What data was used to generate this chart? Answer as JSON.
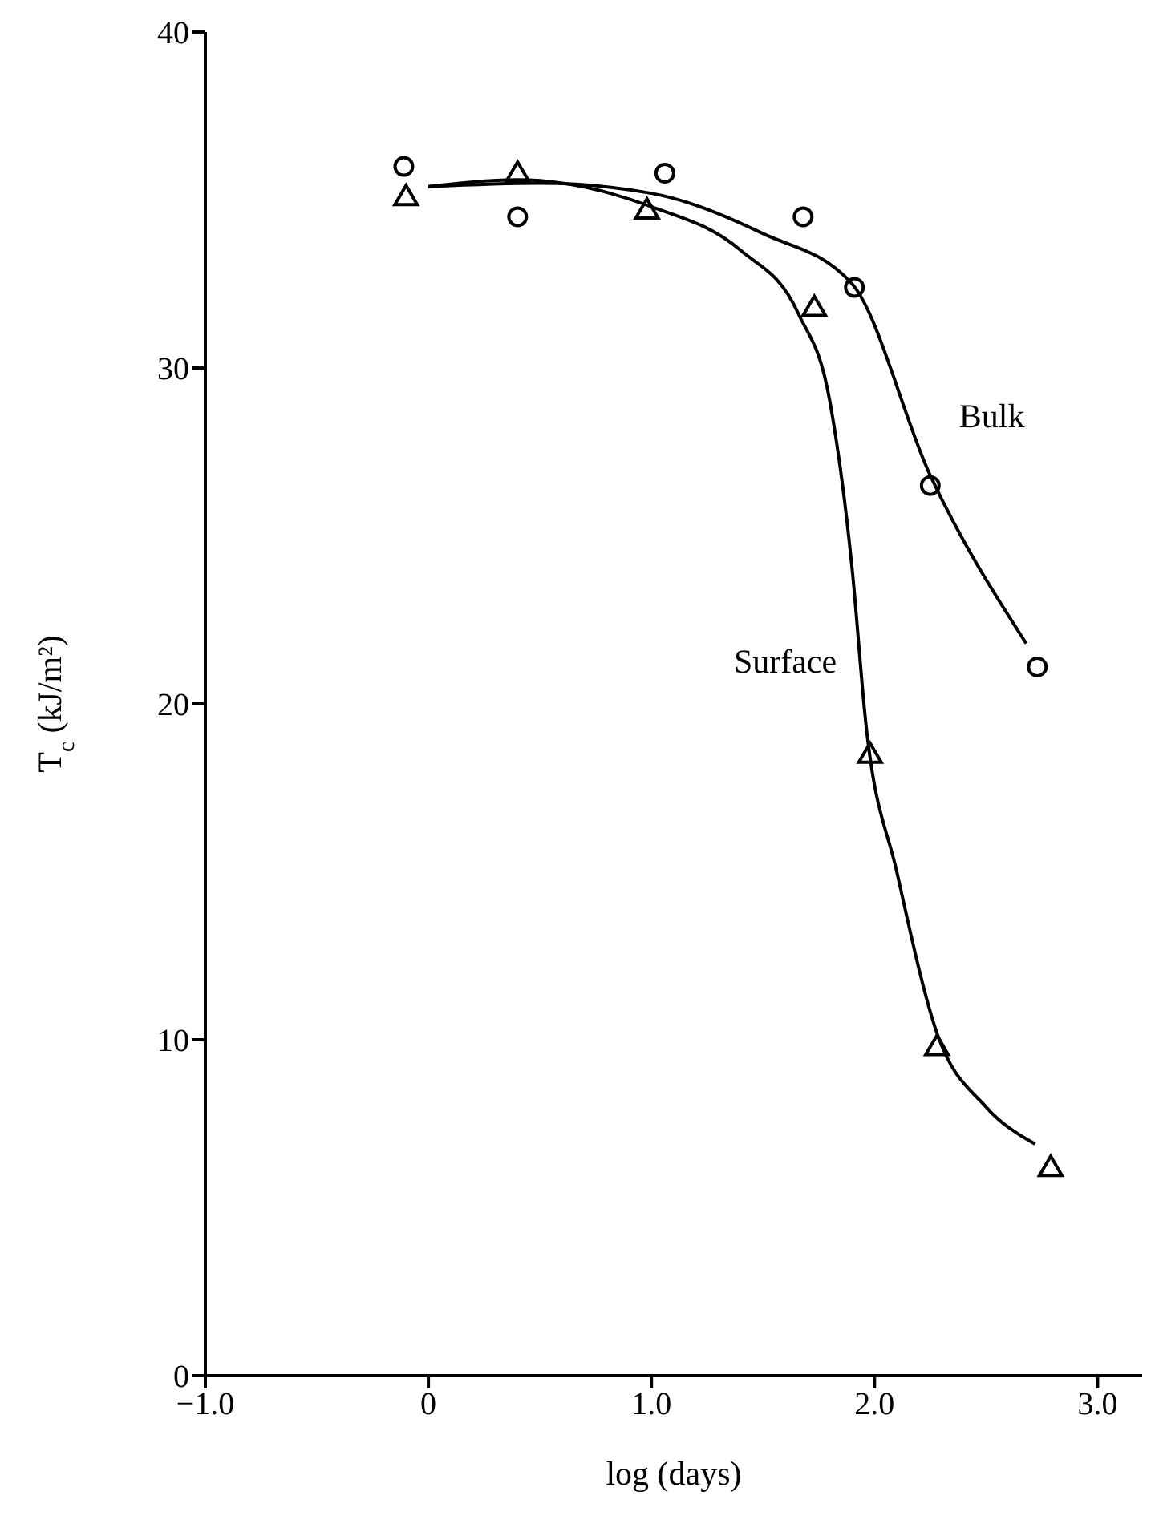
{
  "chart_data": {
    "type": "scatter",
    "xlabel": "log (days)",
    "ylabel": "T$_{c}$ (kJ/m²)",
    "xlim": [
      -1.0,
      3.2
    ],
    "xticks": [
      {
        "value": -1,
        "label": "−1.0"
      },
      {
        "value": 0,
        "label": "0"
      },
      {
        "value": 1,
        "label": "1.0"
      },
      {
        "value": 2,
        "label": "2.0"
      },
      {
        "value": 3,
        "label": "3.0"
      }
    ],
    "ylim": [
      0,
      40
    ],
    "yticks": [
      0,
      10,
      20,
      30,
      40
    ],
    "grid": false,
    "legend": false,
    "series": [
      {
        "marker": "circle",
        "color": "#000000",
        "x": [
          -0.11,
          0.4,
          1.06,
          1.68,
          1.91,
          2.25,
          2.73
        ],
        "values": [
          36.0,
          34.5,
          35.8,
          34.5,
          32.4,
          26.5,
          21.1
        ]
      },
      {
        "marker": "triangle",
        "color": "#000000",
        "x": [
          -0.1,
          0.4,
          0.98,
          1.73,
          1.98,
          2.28,
          2.79
        ],
        "values": [
          35.1,
          35.8,
          34.7,
          31.8,
          18.5,
          9.8,
          6.2
        ]
      },
      {
        "type": "line",
        "name": "Bulk",
        "marker": "none",
        "line_style": "solid",
        "color": "#000000",
        "x": [
          0.0,
          0.5,
          1.0,
          1.5,
          1.9,
          2.25,
          2.68
        ],
        "values": [
          35.4,
          35.5,
          35.2,
          34.0,
          32.5,
          26.8,
          21.8
        ]
      },
      {
        "type": "line",
        "name": "Surface",
        "marker": "none",
        "line_style": "solid",
        "color": "#000000",
        "x": [
          0.0,
          0.4,
          1.0,
          1.4,
          1.66,
          1.8,
          1.9,
          1.96,
          2.1,
          2.28,
          2.5,
          2.72
        ],
        "values": [
          35.4,
          35.6,
          34.8,
          33.5,
          31.6,
          29.0,
          24.0,
          19.5,
          15.0,
          10.2,
          8.0,
          6.9
        ]
      }
    ]
  }
}
